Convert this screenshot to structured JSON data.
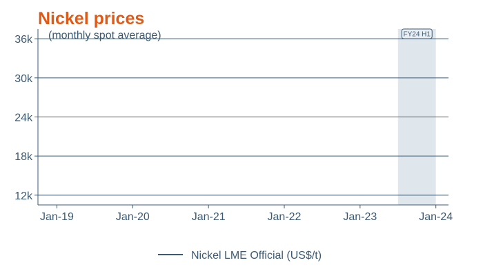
{
  "colors": {
    "title": "#e05a17",
    "text": "#3c5a73",
    "grid": "#3c5a73",
    "axis": "#3c5a73",
    "series": "#3c5a73",
    "band_fill": "#dfe6ec",
    "band_label_border": "#3c5a73",
    "band_label_fill": "#e9eef2"
  },
  "chart_data": {
    "type": "line",
    "title": "Nickel prices",
    "subtitle": "(monthly spot average)",
    "xlabel": "",
    "ylabel": "",
    "x_ticks": [
      "Jan-19",
      "Jan-20",
      "Jan-21",
      "Jan-22",
      "Jan-23",
      "Jan-24"
    ],
    "xlim": [
      "2018-10",
      "2024-03"
    ],
    "y_ticks": [
      12000,
      18000,
      24000,
      30000,
      36000
    ],
    "y_tick_labels": [
      "12k",
      "18k",
      "24k",
      "30k",
      "36k"
    ],
    "ylim": [
      10500,
      37500
    ],
    "grid": "horizontal",
    "legend_position": "bottom",
    "series": [
      {
        "name": "Nickel LME Official (US$/t)",
        "values": []
      }
    ],
    "shaded_periods": [
      {
        "label": "FY24 H1",
        "start": "2023-07",
        "end": "2024-01"
      }
    ]
  }
}
